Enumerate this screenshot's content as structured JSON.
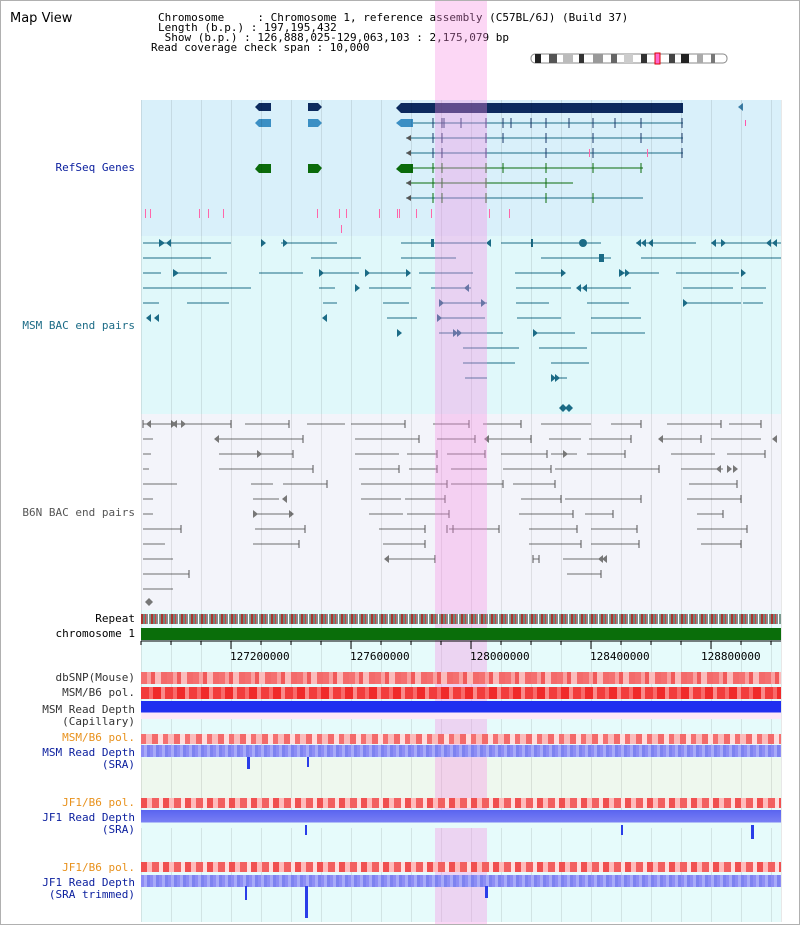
{
  "title": "Map View",
  "info": {
    "chromosome": "Chromosome     : Chromosome 1, reference assembly (C57BL/6J) (Build 37)",
    "length": "Length (b.p.) : 197,195,432",
    "show": " Show (b.p.) : 126,888,025-129,063,103 : 2,175,079 bp",
    "coverage": "Read coverage check span : 10,000"
  },
  "tracks": {
    "refseq": "RefSeq Genes",
    "msm_bac": "MSM BAC end pairs",
    "b6n_bac": "B6N BAC end pairs",
    "repeat": "Repeat",
    "chromosome": "chromosome 1",
    "dbsnp": "dbSNP(Mouse)",
    "msm_b6_pol": "MSM/B6 pol.",
    "msm_read_cap": "MSM Read Depth\n(Capillary)",
    "msm_b6_pol2": "MSM/B6 pol.",
    "msm_read_sra": "MSM Read Depth\n(SRA)",
    "jf1_b6_pol": "JF1/B6 pol.",
    "jf1_read_sra": "JF1 Read Depth\n(SRA)",
    "jf1_b6_pol2": "JF1/B6 pol.",
    "jf1_read_trim": "JF1 Read Depth\n(SRA trimmed)"
  },
  "axis_ticks": [
    "127200000",
    "127600000",
    "128000000",
    "128400000",
    "128800000"
  ],
  "colors": {
    "refseq_bg": "#d9f0fa",
    "msm_bg": "#e0f8fa",
    "b6n_bg": "#f3f4fa",
    "msm_line": "#1b6b86",
    "b6n_line": "#6e6e6e",
    "chrom_green": "#0a6e0a",
    "snp_red": "#f04040",
    "depth_blue": "#2a3de8",
    "highlight": "#f58ce1"
  }
}
